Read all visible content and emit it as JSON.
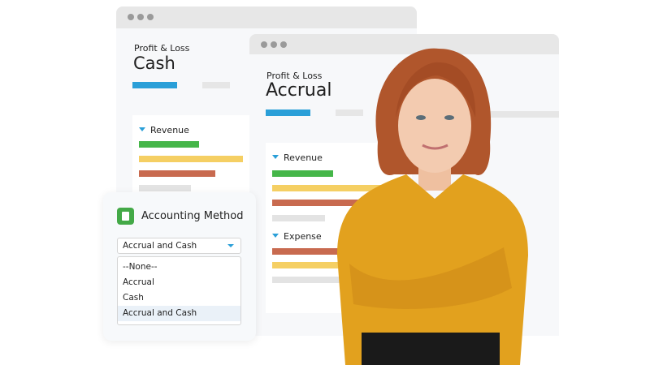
{
  "cash_window": {
    "subtitle": "Profit & Loss",
    "title": "Cash",
    "section": "Revenue"
  },
  "accrual_window": {
    "subtitle": "Profit & Loss",
    "title": "Accrual",
    "sections": [
      "Revenue",
      "Expense"
    ]
  },
  "accounting_panel": {
    "icon": "document-icon",
    "title": "Accounting Method",
    "selected": "Accrual and Cash",
    "options": [
      "--None--",
      "Accrual",
      "Cash",
      "Accrual and Cash"
    ],
    "highlighted_option": "Accrual and Cash"
  },
  "colors": {
    "accent": "#2a9fd8",
    "green": "#45b649",
    "yellow": "#f5cf63",
    "red": "#c86a4f",
    "gray": "#e3e3e3",
    "icon_green": "#43a947"
  }
}
